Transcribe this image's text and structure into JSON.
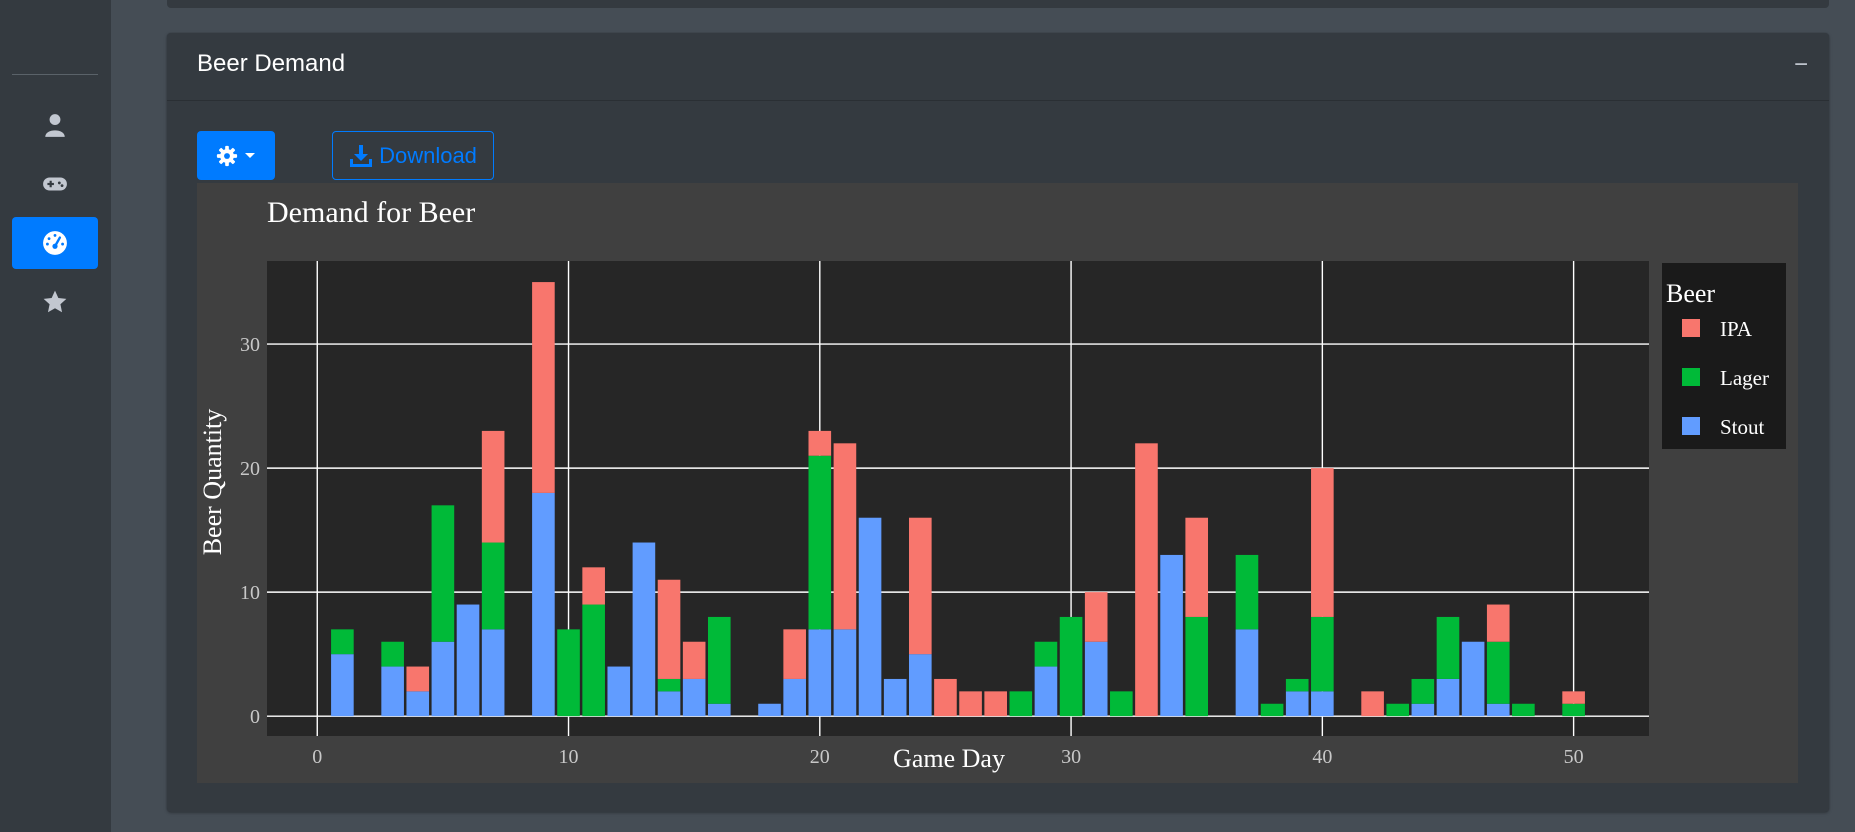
{
  "sidebar": {
    "items": [
      {
        "icon": "user-icon",
        "active": false
      },
      {
        "icon": "gamepad-icon",
        "active": false
      },
      {
        "icon": "tachometer-icon",
        "active": true
      },
      {
        "icon": "star-icon",
        "active": false
      }
    ]
  },
  "card": {
    "title": "Beer Demand",
    "collapse_label": "−",
    "settings_icon": "gear-icon",
    "download_label": "Download"
  },
  "colors": {
    "page_bg": "#454d55",
    "card_bg": "#343a40",
    "accent": "#007bff",
    "plot_paper": "#404040",
    "plot_bg": "#262626",
    "ipa": "#f8766d",
    "lager": "#00ba38",
    "stout": "#619cff"
  },
  "chart_data": {
    "type": "bar",
    "stacked": true,
    "title": "Demand for Beer",
    "xlabel": "Game Day",
    "ylabel": "Beer Quantity",
    "xlim": [
      -2,
      53
    ],
    "ylim": [
      -1.6,
      36.7
    ],
    "xticks": [
      0,
      10,
      20,
      30,
      40,
      50
    ],
    "yticks": [
      0,
      10,
      20,
      30
    ],
    "grid": true,
    "legend": {
      "title": "Beer",
      "position": "right"
    },
    "x": [
      1,
      3,
      4,
      5,
      6,
      7,
      9,
      10,
      11,
      12,
      13,
      14,
      15,
      16,
      18,
      19,
      20,
      21,
      22,
      23,
      24,
      25,
      26,
      27,
      28,
      29,
      30,
      31,
      32,
      33,
      34,
      35,
      37,
      38,
      39,
      40,
      42,
      43,
      44,
      45,
      46,
      47,
      48,
      50
    ],
    "series": [
      {
        "name": "Stout",
        "values": [
          5,
          4,
          2,
          6,
          9,
          7,
          18,
          0,
          0,
          4,
          14,
          2,
          3,
          1,
          1,
          3,
          7,
          7,
          16,
          3,
          5,
          0,
          0,
          0,
          0,
          4,
          0,
          6,
          0,
          0,
          13,
          0,
          7,
          0,
          2,
          2,
          0,
          0,
          1,
          3,
          6,
          1,
          0,
          0
        ]
      },
      {
        "name": "Lager",
        "values": [
          2,
          2,
          0,
          11,
          0,
          7,
          0,
          7,
          9,
          0,
          0,
          1,
          0,
          7,
          0,
          0,
          14,
          0,
          0,
          0,
          0,
          0,
          0,
          0,
          2,
          2,
          8,
          0,
          2,
          0,
          0,
          8,
          6,
          1,
          1,
          6,
          0,
          1,
          2,
          5,
          0,
          5,
          1,
          1
        ]
      },
      {
        "name": "IPA",
        "values": [
          0,
          0,
          2,
          0,
          0,
          9,
          17,
          0,
          3,
          0,
          0,
          8,
          3,
          0,
          0,
          4,
          2,
          15,
          0,
          0,
          11,
          3,
          2,
          2,
          0,
          0,
          0,
          4,
          0,
          22,
          0,
          8,
          0,
          0,
          0,
          12,
          2,
          0,
          0,
          0,
          0,
          3,
          0,
          1
        ]
      }
    ]
  }
}
